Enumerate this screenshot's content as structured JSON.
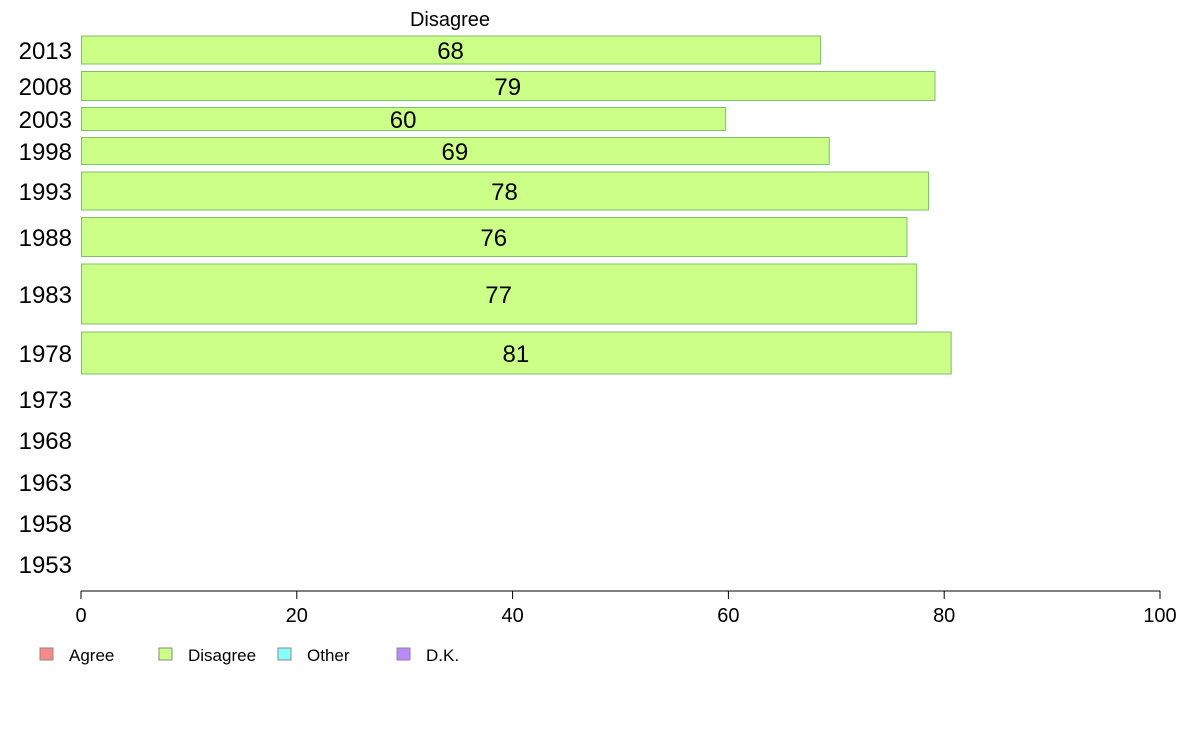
{
  "chart_data": {
    "type": "bar",
    "orientation": "horizontal",
    "title": "Disagree",
    "xlabel": "",
    "ylabel": "",
    "xlim": [
      0,
      100
    ],
    "x_ticks": [
      "0",
      "20",
      "40",
      "60",
      "80",
      "100"
    ],
    "grid": false,
    "legend_position": "bottom-left",
    "categories": [
      "2013",
      "2008",
      "2003",
      "1998",
      "1993",
      "1988",
      "1983",
      "1978",
      "1973",
      "1968",
      "1963",
      "1958",
      "1953"
    ],
    "series": [
      {
        "name": "Disagree",
        "color": "#ccff88",
        "values": [
          68.5,
          79.1,
          59.7,
          69.3,
          78.5,
          76.5,
          77.4,
          80.6,
          null,
          null,
          null,
          null,
          null
        ],
        "labels": [
          "68",
          "79",
          "60",
          "69",
          "78",
          "76",
          "77",
          "81",
          "",
          "",
          "",
          "",
          ""
        ]
      }
    ],
    "legend": [
      {
        "name": "Agree",
        "color": "#ff8888"
      },
      {
        "name": "Disagree",
        "color": "#ccff88"
      },
      {
        "name": "Other",
        "color": "#88ffff"
      },
      {
        "name": "D.K.",
        "color": "#bb88ff"
      }
    ]
  }
}
